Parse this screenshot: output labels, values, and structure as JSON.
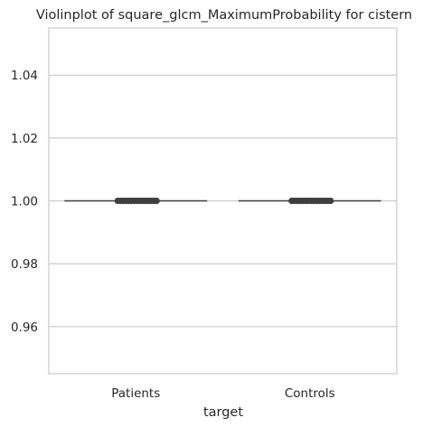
{
  "chart_data": {
    "type": "violin",
    "title": "Violinplot of square_glcm_MaximumProbability for cistern",
    "xlabel": "target",
    "ylabel": "",
    "categories": [
      "Patients",
      "Controls"
    ],
    "values": [
      1.0,
      1.0
    ],
    "ylim": [
      0.945,
      1.055
    ],
    "yticks": [
      0.96,
      0.98,
      1.0,
      1.02,
      1.04
    ],
    "ytick_labels": [
      "0.96",
      "0.98",
      "1.00",
      "1.02",
      "1.04"
    ],
    "grid": true,
    "colors": {
      "grid": "#cccccc",
      "frame": "#cccccc",
      "line": "#3f3f3f",
      "marker": "#3f3f3f",
      "text": "#262626"
    }
  }
}
